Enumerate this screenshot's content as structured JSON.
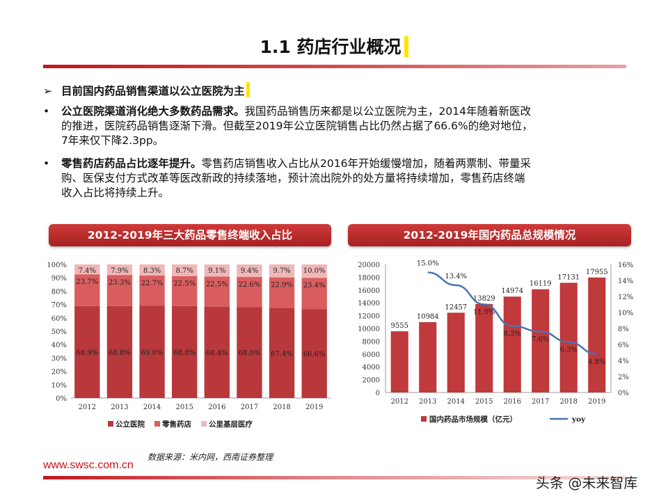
{
  "title": "1.1 药店行业概况",
  "bullet_heading": {
    "marker": "➢",
    "text": "目前国内药品销售渠道以公立医院为主"
  },
  "paragraphs": [
    {
      "marker": "•",
      "bold": "公立医院渠道消化绝大多数药品需求。",
      "line1": "我国药品销售历来都是以公立医院为主，2014年随着新医改",
      "line2": "的推进，医院药品销售逐渐下滑。但截至2019年公立医院销售占比仍然占据了66.6%的绝对地位，",
      "line3": "7年来仅下降2.3pp。"
    },
    {
      "marker": "•",
      "bold": "零售药店药品占比逐年提升。",
      "line1": "零售药店销售收入占比从2016年开始缓慢增加，随着两票制、带量采",
      "line2": "购、医保支付方式改革等医改新政的持续落地，预计流出院外的处方量将持续增加，零售药店终端",
      "line3": "收入占比将持续上升。"
    }
  ],
  "chart_titles": [
    "2012-2019年三大药品零售终端收入占比",
    "2012-2019年国内药品总规模情况"
  ],
  "chart_data": [
    {
      "type": "bar",
      "stacked": true,
      "title": "2012-2019年三大药品零售终端收入占比",
      "categories": [
        "2012",
        "2013",
        "2014",
        "2015",
        "2016",
        "2017",
        "2018",
        "2019"
      ],
      "series": [
        {
          "name": "公立医院",
          "values": [
            68.9,
            68.8,
            69.0,
            68.8,
            68.4,
            68.0,
            67.4,
            66.6
          ],
          "labels": [
            "68.9%",
            "68.8%",
            "69.0%",
            "68.8%",
            "68.4%",
            "68.0%",
            "67.4%",
            "66.6%"
          ],
          "color": "#b8383c"
        },
        {
          "name": "零售药店",
          "values": [
            23.7,
            23.3,
            22.7,
            22.5,
            22.5,
            22.6,
            22.9,
            23.4
          ],
          "labels": [
            "23.7%",
            "23.3%",
            "22.7%",
            "22.5%",
            "22.5%",
            "22.6%",
            "22.9%",
            "23.4%"
          ],
          "color": "#d95d5f"
        },
        {
          "name": "公里基层医疗",
          "values": [
            7.4,
            7.9,
            8.3,
            8.7,
            9.1,
            9.4,
            9.7,
            10.0
          ],
          "labels": [
            "7.4%",
            "7.9%",
            "8.3%",
            "8.7%",
            "9.1%",
            "9.4%",
            "9.7%",
            "10.0%"
          ],
          "color": "#f0b7b8"
        }
      ],
      "y_ticks": [
        "0%",
        "10%",
        "20%",
        "30%",
        "40%",
        "50%",
        "60%",
        "70%",
        "80%",
        "90%",
        "100%"
      ],
      "ylim": [
        0,
        100
      ],
      "legend": "bottom"
    },
    {
      "type": "bar",
      "title": "2012-2019年国内药品总规模情况",
      "categories": [
        "2012",
        "2013",
        "2014",
        "2015",
        "2016",
        "2017",
        "2018",
        "2019"
      ],
      "series": [
        {
          "name": "国内药品市场规模（亿元）",
          "values": [
            9555,
            10984,
            12457,
            13829,
            14974,
            16119,
            17131,
            17955
          ],
          "labels": [
            "9555",
            "10984",
            "12457",
            "13829",
            "14974",
            "16119",
            "17131",
            "17955"
          ],
          "color": "#c0393b"
        },
        {
          "name": "yoy",
          "type": "line",
          "axis": "right",
          "values": [
            null,
            15.0,
            13.4,
            11.0,
            8.3,
            7.6,
            6.3,
            4.8
          ],
          "labels": [
            "",
            "15.0%",
            "13.4%",
            "11.0%",
            "8.3%",
            "7.6%",
            "6.3%",
            "4.8%"
          ],
          "color": "#4a72b0"
        }
      ],
      "y_ticks": [
        "0",
        "2000",
        "4000",
        "6000",
        "8000",
        "10000",
        "12000",
        "14000",
        "16000",
        "18000",
        "20000"
      ],
      "ylim": [
        0,
        20000
      ],
      "y2_ticks": [
        "0%",
        "2%",
        "4%",
        "6%",
        "8%",
        "10%",
        "12%",
        "14%",
        "16%"
      ],
      "y2lim": [
        0,
        16
      ],
      "legend": "bottom"
    }
  ],
  "source": "数据来源：米内网，西南证券整理",
  "website": "www.swsc.com.cn",
  "watermark": "头条 @未来智库"
}
